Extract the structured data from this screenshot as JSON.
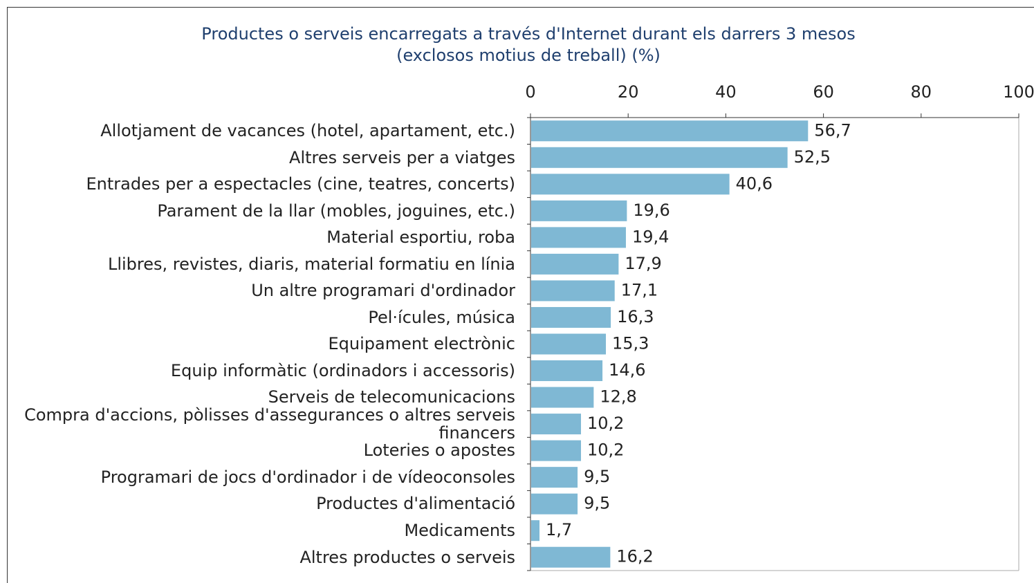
{
  "chart_data": {
    "type": "bar",
    "orientation": "horizontal",
    "title": "Productes o serveis encarregats a través d'Internet durant els darrers 3 mesos",
    "subtitle": "(exclosos motius de treball) (%)",
    "categories": [
      "Allotjament de vacances (hotel, apartament, etc.)",
      "Altres serveis per a viatges",
      "Entrades per a espectacles (cine, teatres, concerts)",
      "Parament de la llar (mobles, joguines, etc.)",
      "Material esportiu, roba",
      "Llibres, revistes, diaris, material formatiu en línia",
      "Un altre programari d'ordinador",
      "Pel·ícules, música",
      "Equipament electrònic",
      "Equip informàtic (ordinadors i accessoris)",
      "Serveis de telecomunicacions",
      "Compra d'accions, pòlisses d'assegurances o altres serveis financers",
      "Loteries o apostes",
      "Programari de jocs d'ordinador i de vídeoconsoles",
      "Productes d'alimentació",
      "Medicaments",
      "Altres productes o serveis"
    ],
    "values": [
      56.7,
      52.5,
      40.6,
      19.6,
      19.4,
      17.9,
      17.1,
      16.3,
      15.3,
      14.6,
      12.8,
      10.2,
      10.2,
      9.5,
      9.5,
      1.7,
      16.2
    ],
    "value_labels": [
      "56,7",
      "52,5",
      "40,6",
      "19,6",
      "19,4",
      "17,9",
      "17,1",
      "16,3",
      "15,3",
      "14,6",
      "12,8",
      "10,2",
      "10,2",
      "9,5",
      "9,5",
      "1,7",
      "16,2"
    ],
    "color": "#7fb8d4",
    "xlim": [
      0,
      100
    ],
    "xticks": [
      0,
      20,
      40,
      60,
      80,
      100
    ]
  }
}
